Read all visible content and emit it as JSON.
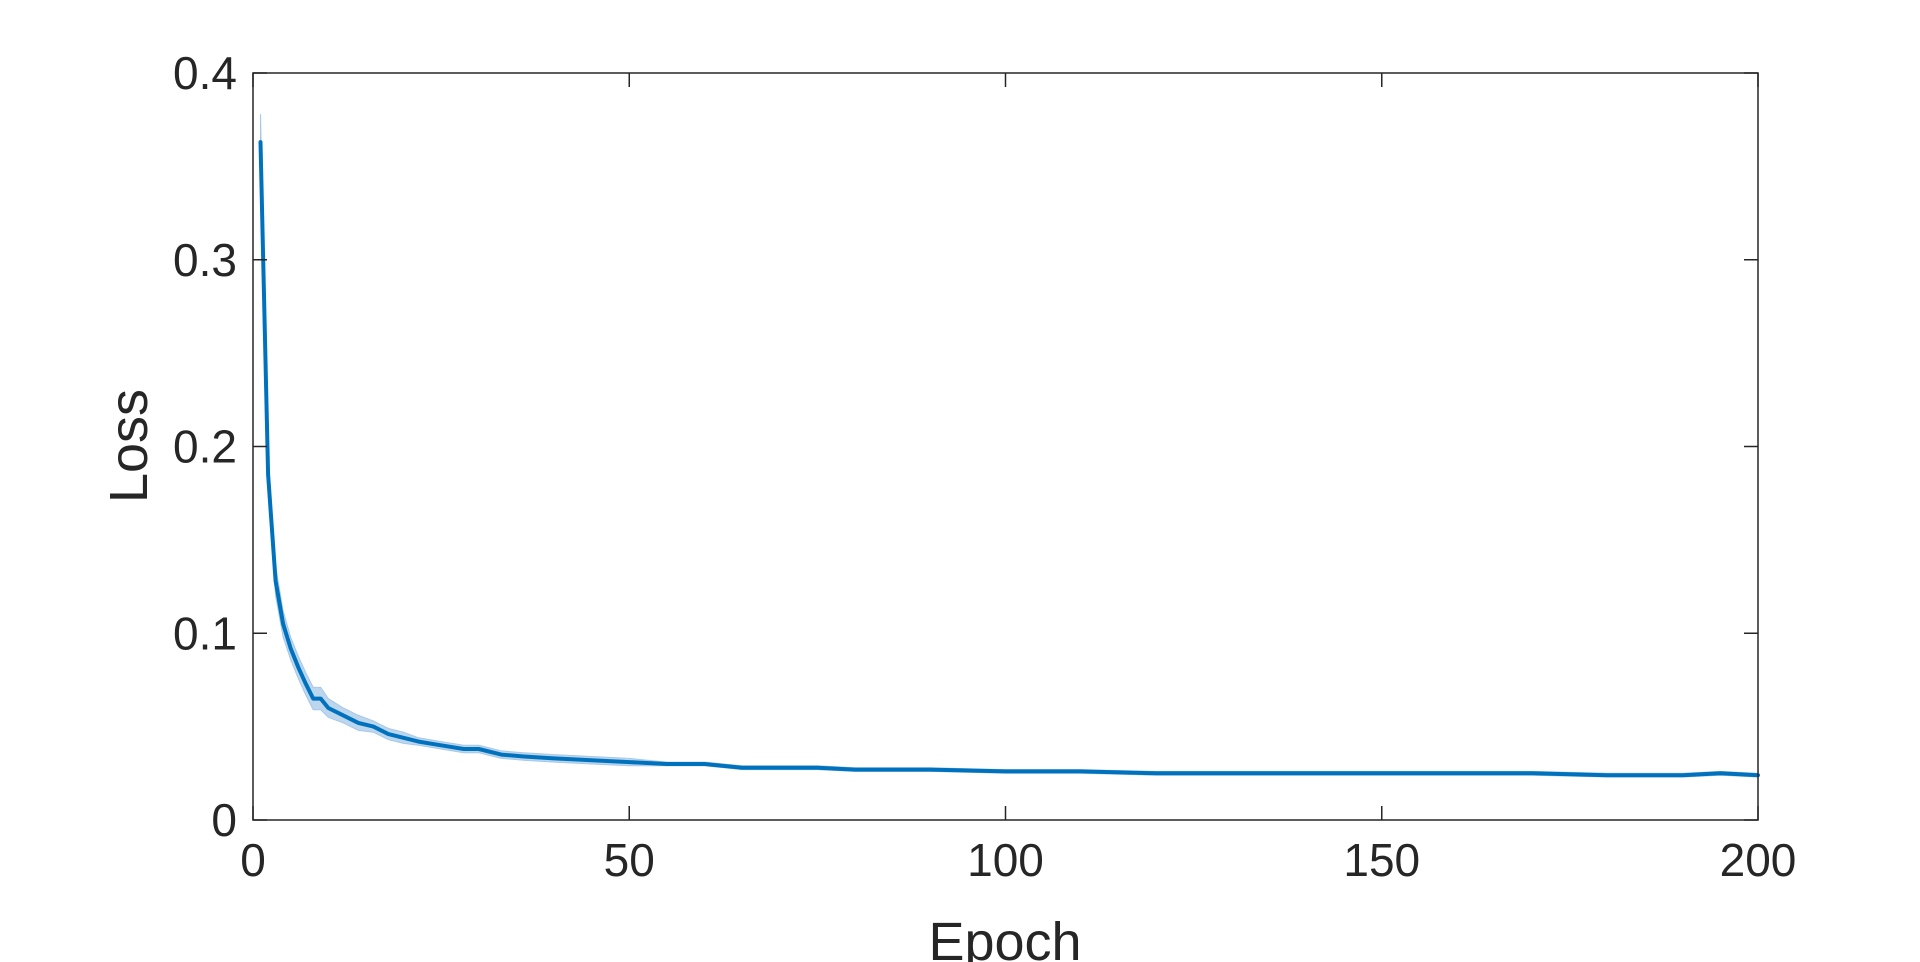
{
  "chart_data": {
    "type": "line",
    "title": "",
    "xlabel": "Epoch",
    "ylabel": "Loss",
    "xlim": [
      0,
      200
    ],
    "ylim": [
      0,
      0.4
    ],
    "xticks": [
      0,
      50,
      100,
      150,
      200
    ],
    "yticks": [
      0,
      0.1,
      0.2,
      0.3,
      0.4
    ],
    "xtick_labels": [
      "0",
      "50",
      "100",
      "150",
      "200"
    ],
    "ytick_labels": [
      "0",
      "0.1",
      "0.2",
      "0.3",
      "0.4"
    ],
    "grid": false,
    "legend": "none",
    "line_color": "#0072BD",
    "band_color": "#A6C8E8",
    "series": [
      {
        "x": [
          1,
          2,
          3,
          4,
          5,
          6,
          7,
          8,
          9,
          10,
          12,
          14,
          16,
          18,
          20,
          22,
          25,
          28,
          30,
          33,
          36,
          40,
          45,
          50,
          55,
          60,
          65,
          70,
          75,
          80,
          90,
          100,
          110,
          120,
          130,
          140,
          150,
          160,
          170,
          180,
          190,
          195,
          200
        ],
        "y": [
          0.363,
          0.185,
          0.128,
          0.105,
          0.092,
          0.082,
          0.073,
          0.065,
          0.065,
          0.06,
          0.056,
          0.052,
          0.05,
          0.046,
          0.044,
          0.042,
          0.04,
          0.038,
          0.038,
          0.035,
          0.034,
          0.033,
          0.032,
          0.031,
          0.03,
          0.03,
          0.028,
          0.028,
          0.028,
          0.027,
          0.027,
          0.026,
          0.026,
          0.025,
          0.025,
          0.025,
          0.025,
          0.025,
          0.025,
          0.024,
          0.024,
          0.025,
          0.024
        ],
        "band": [
          0.015,
          0.01,
          0.008,
          0.007,
          0.006,
          0.006,
          0.006,
          0.006,
          0.006,
          0.005,
          0.004,
          0.004,
          0.003,
          0.003,
          0.003,
          0.002,
          0.002,
          0.002,
          0.002,
          0.002,
          0.002,
          0.002,
          0.002,
          0.002,
          0.001,
          0.001,
          0.001,
          0.001,
          0.001,
          0.001,
          0.001,
          0.001,
          0.001,
          0.001,
          0.001,
          0.001,
          0.001,
          0.001,
          0.001,
          0.001,
          0.001,
          0.001,
          0.001
        ]
      }
    ]
  }
}
